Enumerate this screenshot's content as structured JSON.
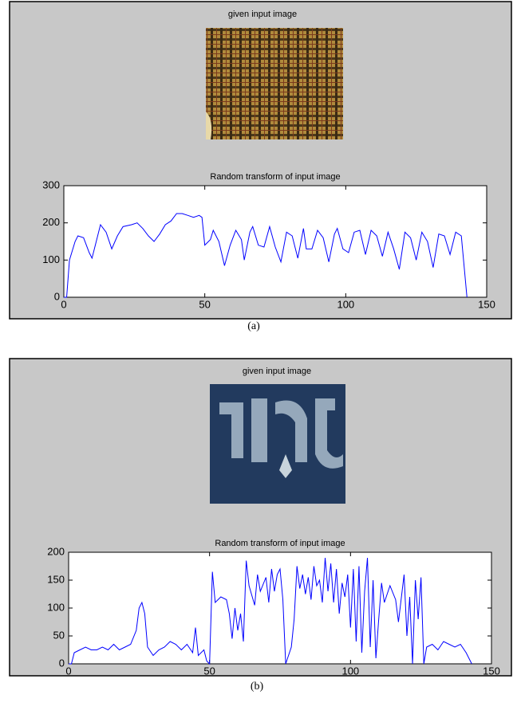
{
  "panels": [
    {
      "image_title": "given input image",
      "caption": "(a)"
    },
    {
      "image_title": "given input image",
      "caption": "(b)"
    }
  ],
  "chart_data": [
    {
      "type": "line",
      "title": "Random transform of input image",
      "xlim": [
        0,
        150
      ],
      "ylim": [
        0,
        300
      ],
      "xticks": [
        0,
        50,
        100,
        150
      ],
      "yticks": [
        0,
        100,
        200,
        300
      ],
      "series": [
        {
          "color": "#0000ff",
          "x": [
            0,
            1,
            2,
            4,
            5,
            7,
            9,
            10,
            12,
            13,
            15,
            17,
            19,
            21,
            24,
            26,
            28,
            30,
            32,
            34,
            36,
            38,
            40,
            42,
            44,
            46,
            48,
            49,
            50,
            52,
            53,
            55,
            57,
            59,
            61,
            63,
            64,
            66,
            67,
            69,
            71,
            73,
            75,
            77,
            79,
            81,
            83,
            85,
            86,
            88,
            90,
            92,
            94,
            96,
            97,
            99,
            101,
            103,
            105,
            107,
            109,
            111,
            113,
            115,
            117,
            119,
            121,
            123,
            125,
            127,
            129,
            131,
            133,
            135,
            137,
            139,
            141,
            143
          ],
          "values": [
            0,
            0,
            100,
            150,
            165,
            160,
            120,
            105,
            165,
            195,
            175,
            130,
            165,
            190,
            195,
            200,
            185,
            165,
            150,
            170,
            195,
            205,
            225,
            225,
            220,
            215,
            220,
            215,
            140,
            155,
            180,
            150,
            85,
            140,
            180,
            155,
            100,
            175,
            190,
            140,
            135,
            190,
            135,
            95,
            175,
            165,
            105,
            185,
            130,
            130,
            180,
            160,
            95,
            170,
            185,
            130,
            120,
            175,
            180,
            115,
            180,
            165,
            110,
            175,
            130,
            75,
            175,
            160,
            100,
            175,
            150,
            80,
            170,
            165,
            115,
            175,
            165,
            0
          ]
        }
      ]
    },
    {
      "type": "line",
      "title": "Random transform of input image",
      "xlim": [
        0,
        150
      ],
      "ylim": [
        0,
        200
      ],
      "xticks": [
        0,
        50,
        100,
        150
      ],
      "yticks": [
        0,
        50,
        100,
        150,
        200
      ],
      "series": [
        {
          "color": "#0000ff",
          "x": [
            0,
            1,
            2,
            4,
            6,
            8,
            10,
            12,
            14,
            16,
            18,
            20,
            22,
            24,
            25,
            26,
            27,
            28,
            30,
            32,
            34,
            36,
            38,
            40,
            42,
            44,
            45,
            46,
            48,
            49,
            50,
            51,
            52,
            54,
            56,
            57,
            58,
            59,
            60,
            61,
            62,
            63,
            64,
            66,
            67,
            68,
            70,
            71,
            72,
            73,
            74,
            75,
            76,
            77,
            79,
            80,
            81,
            82,
            83,
            84,
            85,
            86,
            87,
            88,
            89,
            90,
            91,
            92,
            93,
            94,
            95,
            96,
            97,
            98,
            99,
            100,
            101,
            102,
            103,
            104,
            105,
            106,
            107,
            108,
            109,
            110,
            111,
            112,
            114,
            116,
            117,
            119,
            120,
            121,
            122,
            123,
            124,
            125,
            126,
            127,
            129,
            131,
            133,
            135,
            137,
            139,
            141,
            143
          ],
          "values": [
            0,
            0,
            20,
            25,
            30,
            25,
            25,
            30,
            25,
            35,
            25,
            30,
            35,
            60,
            100,
            110,
            90,
            30,
            15,
            25,
            30,
            40,
            35,
            25,
            35,
            20,
            65,
            15,
            25,
            5,
            0,
            165,
            110,
            120,
            115,
            90,
            45,
            100,
            60,
            90,
            40,
            185,
            140,
            105,
            160,
            130,
            155,
            110,
            170,
            130,
            160,
            170,
            115,
            0,
            30,
            80,
            175,
            135,
            160,
            125,
            155,
            115,
            175,
            140,
            150,
            110,
            190,
            130,
            180,
            110,
            170,
            90,
            145,
            120,
            160,
            65,
            170,
            40,
            175,
            20,
            130,
            190,
            30,
            150,
            10,
            80,
            145,
            110,
            140,
            115,
            75,
            160,
            50,
            120,
            0,
            150,
            80,
            155,
            0,
            30,
            35,
            25,
            40,
            35,
            30,
            35,
            20,
            0
          ]
        }
      ]
    }
  ]
}
